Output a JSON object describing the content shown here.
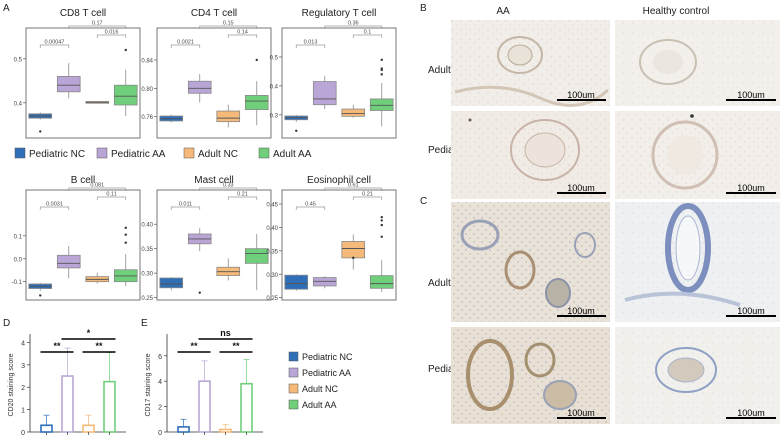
{
  "figure": {
    "panel_labels": {
      "A": "A",
      "B": "B",
      "C": "C",
      "D": "D",
      "E": "E"
    },
    "colors": {
      "pediatric_nc": "#2e6fb8",
      "pediatric_aa": "#b9a6d6",
      "adult_nc": "#f5b979",
      "adult_aa": "#6fcf7a",
      "pvalue_bracket": "#9a9a9a",
      "box_edge": "#8a8a8a"
    },
    "legend_a": {
      "items": [
        {
          "label": "Pediatric NC",
          "color": "#2e6fb8"
        },
        {
          "label": "Pediatric AA",
          "color": "#b9a6d6"
        },
        {
          "label": "Adult NC",
          "color": "#f5b979"
        },
        {
          "label": "Adult AA",
          "color": "#6fcf7a"
        }
      ]
    },
    "legend_de": {
      "items": [
        {
          "label": "Pediatric NC",
          "color": "#2e6fb8"
        },
        {
          "label": "Pediatric AA",
          "color": "#b9a6d6"
        },
        {
          "label": "Adult NC",
          "color": "#f5b979"
        },
        {
          "label": "Adult AA",
          "color": "#6fcf7a"
        }
      ]
    },
    "histology_B": {
      "col_titles": [
        "AA",
        "Healthy control"
      ],
      "row_labels": [
        "Adult",
        "Pediatric"
      ],
      "scale_bar": "100um"
    },
    "histology_C": {
      "row_labels": [
        "Adult",
        "Pediatric"
      ],
      "scale_bar": "100um"
    }
  },
  "chart_data": [
    {
      "id": "cd8",
      "type": "box",
      "title": "CD8 T cell",
      "categories": [
        "Pediatric NC",
        "Pediatric AA",
        "Adult NC",
        "Adult AA"
      ],
      "ylim": [
        0.32,
        0.57
      ],
      "yticks": [
        0.4,
        0.5
      ],
      "ytick_labels": [
        "0.4",
        "0.5"
      ],
      "boxes": [
        {
          "q1": 0.365,
          "median": 0.37,
          "q3": 0.375,
          "whislo": 0.362,
          "whishi": 0.378,
          "fliers": [
            0.335
          ]
        },
        {
          "q1": 0.425,
          "median": 0.44,
          "q3": 0.46,
          "whislo": 0.41,
          "whishi": 0.49,
          "fliers": []
        },
        {
          "q1": 0.399,
          "median": 0.401,
          "q3": 0.403,
          "whislo": 0.398,
          "whishi": 0.404,
          "fliers": []
        },
        {
          "q1": 0.395,
          "median": 0.415,
          "q3": 0.44,
          "whislo": 0.37,
          "whishi": 0.475,
          "fliers": [
            0.52
          ]
        }
      ],
      "pvalues": [
        {
          "a": 0,
          "b": 1,
          "level": 0,
          "text": "0.00047"
        },
        {
          "a": 2,
          "b": 3,
          "level": 1,
          "text": "0.016"
        },
        {
          "a": 1,
          "b": 3,
          "level": 2,
          "text": "0.17"
        }
      ]
    },
    {
      "id": "cd4",
      "type": "box",
      "title": "CD4 T cell",
      "categories": [
        "Pediatric NC",
        "Pediatric AA",
        "Adult NC",
        "Adult AA"
      ],
      "ylim": [
        0.73,
        0.885
      ],
      "yticks": [
        0.76,
        0.8,
        0.84
      ],
      "ytick_labels": [
        "0.76",
        "0.80",
        "0.84"
      ],
      "boxes": [
        {
          "q1": 0.754,
          "median": 0.757,
          "q3": 0.761,
          "whislo": 0.752,
          "whishi": 0.763,
          "fliers": []
        },
        {
          "q1": 0.793,
          "median": 0.8,
          "q3": 0.81,
          "whislo": 0.78,
          "whishi": 0.82,
          "fliers": []
        },
        {
          "q1": 0.753,
          "median": 0.758,
          "q3": 0.768,
          "whislo": 0.745,
          "whishi": 0.777,
          "fliers": []
        },
        {
          "q1": 0.77,
          "median": 0.782,
          "q3": 0.79,
          "whislo": 0.748,
          "whishi": 0.81,
          "fliers": [
            0.84
          ]
        }
      ],
      "pvalues": [
        {
          "a": 0,
          "b": 1,
          "level": 0,
          "text": "0.0021"
        },
        {
          "a": 2,
          "b": 3,
          "level": 1,
          "text": "0.14"
        },
        {
          "a": 1,
          "b": 3,
          "level": 2,
          "text": "0.15"
        }
      ]
    },
    {
      "id": "treg",
      "type": "box",
      "title": "Regulatory T cell",
      "categories": [
        "Pediatric NC",
        "Pediatric AA",
        "Adult NC",
        "Adult AA"
      ],
      "ylim": [
        0.22,
        0.6
      ],
      "yticks": [
        0.3,
        0.4,
        0.5
      ],
      "ytick_labels": [
        "0.3",
        "0.4",
        "0.5"
      ],
      "boxes": [
        {
          "q1": 0.283,
          "median": 0.29,
          "q3": 0.296,
          "whislo": 0.275,
          "whishi": 0.3,
          "fliers": [
            0.245
          ]
        },
        {
          "q1": 0.335,
          "median": 0.355,
          "q3": 0.415,
          "whislo": 0.32,
          "whishi": 0.435,
          "fliers": []
        },
        {
          "q1": 0.295,
          "median": 0.305,
          "q3": 0.32,
          "whislo": 0.29,
          "whishi": 0.335,
          "fliers": []
        },
        {
          "q1": 0.315,
          "median": 0.333,
          "q3": 0.355,
          "whislo": 0.26,
          "whishi": 0.41,
          "fliers": [
            0.44,
            0.455,
            0.46,
            0.49
          ]
        }
      ],
      "pvalues": [
        {
          "a": 0,
          "b": 1,
          "level": 0,
          "text": "0.013"
        },
        {
          "a": 2,
          "b": 3,
          "level": 1,
          "text": "0.1"
        },
        {
          "a": 1,
          "b": 3,
          "level": 2,
          "text": "0.36"
        }
      ]
    },
    {
      "id": "bcell",
      "type": "box",
      "title": "B cell",
      "categories": [
        "Pediatric NC",
        "Pediatric AA",
        "Adult NC",
        "Adult AA"
      ],
      "ylim": [
        -0.18,
        0.3
      ],
      "yticks": [
        -0.1,
        0.0,
        0.1
      ],
      "ytick_labels": [
        "-0.1",
        "0.0",
        "0.1"
      ],
      "boxes": [
        {
          "q1": -0.13,
          "median": -0.12,
          "q3": -0.11,
          "whislo": -0.14,
          "whishi": -0.105,
          "fliers": [
            -0.16
          ]
        },
        {
          "q1": -0.04,
          "median": -0.02,
          "q3": 0.015,
          "whislo": -0.085,
          "whishi": 0.055,
          "fliers": []
        },
        {
          "q1": -0.1,
          "median": -0.09,
          "q3": -0.078,
          "whislo": -0.108,
          "whishi": -0.062,
          "fliers": []
        },
        {
          "q1": -0.1,
          "median": -0.075,
          "q3": -0.048,
          "whislo": -0.12,
          "whishi": 0.02,
          "fliers": [
            0.07,
            0.105,
            0.135
          ]
        }
      ],
      "pvalues": [
        {
          "a": 0,
          "b": 1,
          "level": 0,
          "text": "0.0031"
        },
        {
          "a": 2,
          "b": 3,
          "level": 1,
          "text": "0.11"
        },
        {
          "a": 1,
          "b": 3,
          "level": 2,
          "text": "0.081"
        }
      ]
    },
    {
      "id": "mast",
      "type": "box",
      "title": "Mast cell",
      "categories": [
        "Pediatric NC",
        "Pediatric AA",
        "Adult NC",
        "Adult AA"
      ],
      "ylim": [
        0.245,
        0.47
      ],
      "yticks": [
        0.25,
        0.3,
        0.35,
        0.4
      ],
      "ytick_labels": [
        "0.25",
        "0.30",
        "0.35",
        "0.40"
      ],
      "boxes": [
        {
          "q1": 0.27,
          "median": 0.278,
          "q3": 0.29,
          "whislo": 0.265,
          "whishi": 0.292,
          "fliers": []
        },
        {
          "q1": 0.36,
          "median": 0.37,
          "q3": 0.38,
          "whislo": 0.345,
          "whishi": 0.392,
          "fliers": [
            0.26
          ]
        },
        {
          "q1": 0.295,
          "median": 0.303,
          "q3": 0.312,
          "whislo": 0.285,
          "whishi": 0.33,
          "fliers": []
        },
        {
          "q1": 0.32,
          "median": 0.34,
          "q3": 0.35,
          "whislo": 0.265,
          "whishi": 0.38,
          "fliers": []
        }
      ],
      "pvalues": [
        {
          "a": 0,
          "b": 1,
          "level": 0,
          "text": "0.011"
        },
        {
          "a": 2,
          "b": 3,
          "level": 1,
          "text": "0.21"
        },
        {
          "a": 1,
          "b": 3,
          "level": 2,
          "text": "0.33"
        }
      ]
    },
    {
      "id": "eos",
      "type": "box",
      "title": "Eosinophil cell",
      "categories": [
        "Pediatric NC",
        "Pediatric AA",
        "Adult NC",
        "Adult AA"
      ],
      "ylim": [
        0.245,
        0.48
      ],
      "yticks": [
        0.25,
        0.3,
        0.35,
        0.4,
        0.45
      ],
      "ytick_labels": [
        "0.25",
        "0.30",
        "0.35",
        "0.40",
        "0.45"
      ],
      "boxes": [
        {
          "q1": 0.268,
          "median": 0.28,
          "q3": 0.298,
          "whislo": 0.265,
          "whishi": 0.3,
          "fliers": []
        },
        {
          "q1": 0.275,
          "median": 0.285,
          "q3": 0.293,
          "whislo": 0.27,
          "whishi": 0.296,
          "fliers": []
        },
        {
          "q1": 0.335,
          "median": 0.355,
          "q3": 0.37,
          "whislo": 0.31,
          "whishi": 0.385,
          "fliers": [
            0.335
          ]
        },
        {
          "q1": 0.27,
          "median": 0.28,
          "q3": 0.297,
          "whislo": 0.262,
          "whishi": 0.33,
          "fliers": [
            0.38,
            0.405,
            0.415,
            0.422
          ]
        }
      ],
      "pvalues": [
        {
          "a": 0,
          "b": 1,
          "level": 0,
          "text": "0.45"
        },
        {
          "a": 2,
          "b": 3,
          "level": 1,
          "text": "0.21"
        },
        {
          "a": 1,
          "b": 3,
          "level": 2,
          "text": "0.61"
        }
      ]
    },
    {
      "id": "cd20",
      "type": "bar",
      "title": "",
      "ylabel": "CD20 staining score",
      "categories": [
        "Pediatric NC",
        "Pediatric AA",
        "Adult NC",
        "Adult AA"
      ],
      "values": [
        0.3,
        2.5,
        0.3,
        2.25
      ],
      "errors": [
        0.45,
        1.25,
        0.45,
        1.3
      ],
      "ylim": [
        0,
        4.2
      ],
      "yticks": [
        0,
        1,
        2,
        3,
        4
      ],
      "ytick_labels": [
        "0",
        "1",
        "2",
        "3",
        "4"
      ],
      "significance": [
        {
          "a": 0,
          "b": 1,
          "level": 0,
          "text": "**"
        },
        {
          "a": 2,
          "b": 3,
          "level": 0,
          "text": "**"
        },
        {
          "a": 1,
          "b": 3,
          "level": 1,
          "text": "*"
        }
      ]
    },
    {
      "id": "cd17",
      "type": "bar",
      "title": "",
      "ylabel": "CD17 staining score",
      "categories": [
        "Pediatric NC",
        "Pediatric AA",
        "Adult NC",
        "Adult AA"
      ],
      "values": [
        0.4,
        4.0,
        0.2,
        3.8
      ],
      "errors": [
        0.6,
        1.6,
        0.4,
        1.9
      ],
      "ylim": [
        0,
        7.4
      ],
      "yticks": [
        0,
        2,
        4,
        6
      ],
      "ytick_labels": [
        "0",
        "2",
        "4",
        "6"
      ],
      "significance": [
        {
          "a": 0,
          "b": 1,
          "level": 0,
          "text": "**"
        },
        {
          "a": 2,
          "b": 3,
          "level": 0,
          "text": "**"
        },
        {
          "a": 1,
          "b": 3,
          "level": 1,
          "text": "ns"
        }
      ]
    }
  ]
}
